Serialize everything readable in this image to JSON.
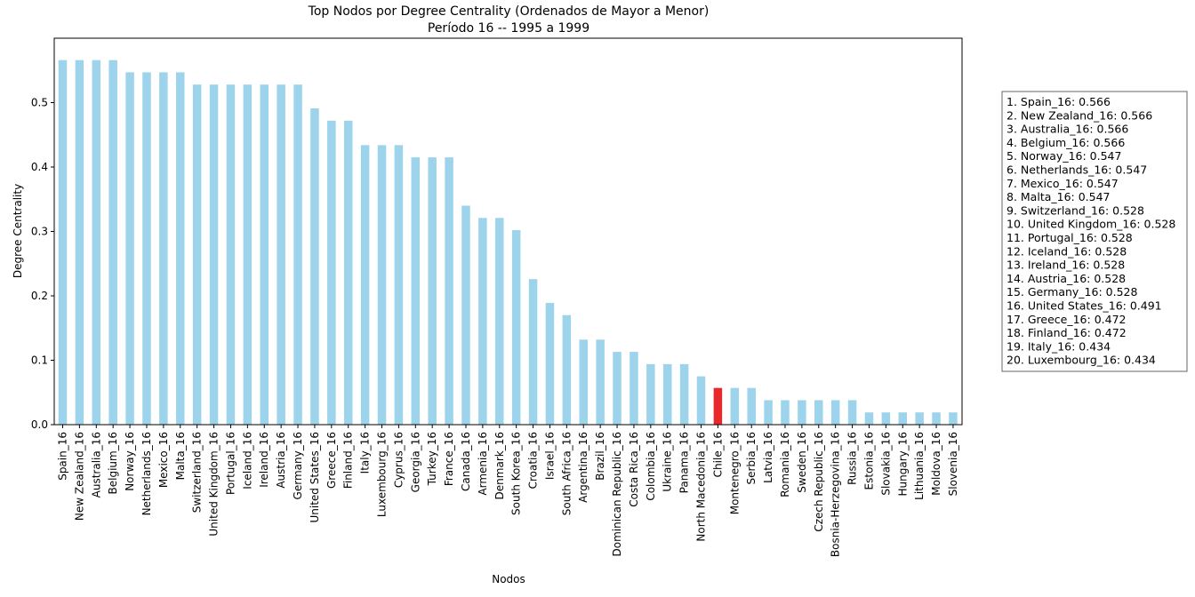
{
  "chart_data": {
    "type": "bar",
    "title": "Top Nodos por Degree Centrality (Ordenados de Mayor a Menor)",
    "subtitle": "Período 16 -- 1995 a 1999",
    "xlabel": "Nodos",
    "ylabel": "Degree Centrality",
    "ylim": [
      0,
      0.6
    ],
    "yticks": [
      "0.0",
      "0.1",
      "0.2",
      "0.3",
      "0.4",
      "0.5"
    ],
    "grid": false,
    "bar_color": "#9dd4ec",
    "highlight_color": "#e8282b",
    "highlight_category": "Chile_16",
    "categories": [
      "Spain_16",
      "New Zealand_16",
      "Australia_16",
      "Belgium_16",
      "Norway_16",
      "Netherlands_16",
      "Mexico_16",
      "Malta_16",
      "Switzerland_16",
      "United Kingdom_16",
      "Portugal_16",
      "Iceland_16",
      "Ireland_16",
      "Austria_16",
      "Germany_16",
      "United States_16",
      "Greece_16",
      "Finland_16",
      "Italy_16",
      "Luxembourg_16",
      "Cyprus_16",
      "Georgia_16",
      "Turkey_16",
      "France_16",
      "Canada_16",
      "Armenia_16",
      "Denmark_16",
      "South Korea_16",
      "Croatia_16",
      "Israel_16",
      "South Africa_16",
      "Argentina_16",
      "Brazil_16",
      "Dominican Republic_16",
      "Costa Rica_16",
      "Colombia_16",
      "Ukraine_16",
      "Panama_16",
      "North Macedonia_16",
      "Chile_16",
      "Montenegro_16",
      "Serbia_16",
      "Latvia_16",
      "Romania_16",
      "Sweden_16",
      "Czech Republic_16",
      "Bosnia-Herzegovina_16",
      "Russia_16",
      "Estonia_16",
      "Slovakia_16",
      "Hungary_16",
      "Lithuania_16",
      "Moldova_16",
      "Slovenia_16"
    ],
    "values": [
      0.566,
      0.566,
      0.566,
      0.566,
      0.547,
      0.547,
      0.547,
      0.547,
      0.528,
      0.528,
      0.528,
      0.528,
      0.528,
      0.528,
      0.528,
      0.491,
      0.472,
      0.472,
      0.434,
      0.434,
      0.434,
      0.415,
      0.415,
      0.415,
      0.34,
      0.321,
      0.321,
      0.302,
      0.226,
      0.189,
      0.17,
      0.132,
      0.132,
      0.113,
      0.113,
      0.094,
      0.094,
      0.094,
      0.075,
      0.057,
      0.057,
      0.057,
      0.038,
      0.038,
      0.038,
      0.038,
      0.038,
      0.038,
      0.019,
      0.019,
      0.019,
      0.019,
      0.019,
      0.019
    ],
    "legend_placement": "right",
    "legend_entries": [
      "1. Spain_16: 0.566",
      "2. New Zealand_16: 0.566",
      "3. Australia_16: 0.566",
      "4. Belgium_16: 0.566",
      "5. Norway_16: 0.547",
      "6. Netherlands_16: 0.547",
      "7. Mexico_16: 0.547",
      "8. Malta_16: 0.547",
      "9. Switzerland_16: 0.528",
      "10. United Kingdom_16: 0.528",
      "11. Portugal_16: 0.528",
      "12. Iceland_16: 0.528",
      "13. Ireland_16: 0.528",
      "14. Austria_16: 0.528",
      "15. Germany_16: 0.528",
      "16. United States_16: 0.491",
      "17. Greece_16: 0.472",
      "18. Finland_16: 0.472",
      "19. Italy_16: 0.434",
      "20. Luxembourg_16: 0.434"
    ]
  }
}
